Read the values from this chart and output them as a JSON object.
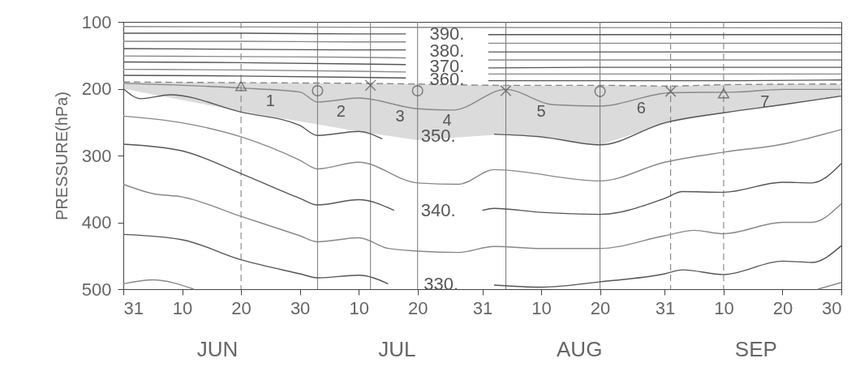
{
  "chart_data": {
    "type": "line",
    "ylabel": "PRESSURE(hPa)",
    "xlim": [
      "--05-31",
      "--09-30"
    ],
    "xticks": [
      {
        "value": "--05-31",
        "label": "31"
      },
      {
        "value": "--06-10",
        "label": "10"
      },
      {
        "value": "--06-20",
        "label": "20"
      },
      {
        "value": "--06-30",
        "label": "30"
      },
      {
        "value": "--07-10",
        "label": "10"
      },
      {
        "value": "--07-20",
        "label": "20"
      },
      {
        "value": "--07-31",
        "label": "31"
      },
      {
        "value": "--08-10",
        "label": "10"
      },
      {
        "value": "--08-20",
        "label": "20"
      },
      {
        "value": "--08-31",
        "label": "31"
      },
      {
        "value": "--09-10",
        "label": "10"
      },
      {
        "value": "--09-20",
        "label": "20"
      },
      {
        "value": "--09-30",
        "label": "30"
      }
    ],
    "ylim": [
      500,
      100
    ],
    "yticks": [
      100,
      200,
      300,
      400,
      500
    ],
    "series": [
      {
        "color": "#888888",
        "x": [
          "--05-31",
          "--07-10",
          "--09-30"
        ],
        "values": [
          107,
          108,
          109
        ]
      },
      {
        "name": "390.",
        "color": "#555555",
        "x": [
          "--05-31",
          "--06-20",
          "--07-10",
          "--07-18",
          "--07-25",
          "--08-01",
          "--08-20",
          "--09-10",
          "--09-30"
        ],
        "values": [
          117,
          117,
          118,
          118,
          null,
          119,
          119,
          119,
          119
        ]
      },
      {
        "color": "#888888",
        "x": [
          "--05-31",
          "--06-20",
          "--07-10",
          "--07-18",
          "--07-25",
          "--08-01",
          "--08-20",
          "--09-10",
          "--09-30"
        ],
        "values": [
          129,
          129,
          130,
          130,
          null,
          132,
          132,
          132,
          132
        ]
      },
      {
        "name": "380.",
        "color": "#555555",
        "x": [
          "--05-31",
          "--06-20",
          "--07-10",
          "--07-18",
          "--07-25",
          "--08-01",
          "--08-20",
          "--09-10",
          "--09-30"
        ],
        "values": [
          140,
          141,
          142,
          142,
          null,
          145,
          145,
          145,
          145
        ]
      },
      {
        "color": "#888888",
        "x": [
          "--05-31",
          "--06-20",
          "--07-10",
          "--07-18",
          "--07-25",
          "--08-01",
          "--08-20",
          "--09-10",
          "--09-30"
        ],
        "values": [
          151,
          152,
          153,
          154,
          null,
          157,
          157,
          157,
          157
        ]
      },
      {
        "name": "370.",
        "color": "#555555",
        "x": [
          "--05-31",
          "--06-20",
          "--07-10",
          "--07-18",
          "--07-25",
          "--08-01",
          "--08-20",
          "--09-10",
          "--09-30"
        ],
        "values": [
          160,
          161,
          163,
          164,
          null,
          169,
          168,
          168,
          168
        ]
      },
      {
        "color": "#888888",
        "x": [
          "--05-31",
          "--06-20",
          "--07-10",
          "--07-18",
          "--07-25",
          "--08-01",
          "--08-20",
          "--09-10",
          "--09-30"
        ],
        "values": [
          171,
          172,
          174,
          175,
          null,
          178,
          178,
          178,
          178
        ]
      },
      {
        "name": "360.",
        "color": "#555555",
        "x": [
          "--05-31",
          "--06-20",
          "--07-10",
          "--07-18",
          "--07-25",
          "--08-01",
          "--08-20",
          "--09-10",
          "--09-30"
        ],
        "values": [
          180,
          181,
          183,
          184,
          null,
          188,
          188,
          188,
          187
        ]
      },
      {
        "color": "#888888",
        "line_style": "dashed",
        "x": [
          "--05-31",
          "--06-20",
          "--07-10",
          "--07-20",
          "--08-04",
          "--08-20",
          "--09-01",
          "--09-10",
          "--09-30"
        ],
        "values": [
          190,
          191,
          192,
          193,
          195,
          195,
          196,
          194,
          193
        ],
        "upper": [
          190,
          191,
          192,
          193,
          195,
          195,
          196,
          194,
          193
        ],
        "lower": [
          200,
          234,
          264,
          277,
          268,
          284,
          250,
          236,
          211
        ]
      },
      {
        "color": "#888888",
        "x": [
          "--05-31",
          "--06-20",
          "--06-30",
          "--07-03",
          "--07-10",
          "--07-20",
          "--07-26",
          "--08-04",
          "--08-12",
          "--08-20",
          "--09-01",
          "--09-12",
          "--09-20",
          "--09-30"
        ],
        "values": [
          192,
          199,
          205,
          220,
          214,
          230,
          232,
          201,
          224,
          226,
          206,
          205,
          201,
          201
        ]
      },
      {
        "name": "350.",
        "color": "#555555",
        "x": [
          "--05-31",
          "--06-03",
          "--06-08",
          "--06-20",
          "--06-30",
          "--07-03",
          "--07-10",
          "--07-14",
          "--07-23",
          "--08-02",
          "--08-10",
          "--08-20",
          "--08-31",
          "--09-10",
          "--09-20",
          "--09-30"
        ],
        "values": [
          200,
          215,
          209,
          235,
          255,
          270,
          264,
          275,
          null,
          268,
          272,
          284,
          251,
          236,
          224,
          211
        ]
      },
      {
        "color": "#888888",
        "x": [
          "--05-31",
          "--06-10",
          "--06-20",
          "--06-30",
          "--07-03",
          "--07-10",
          "--07-20",
          "--07-27",
          "--08-02",
          "--08-20",
          "--08-31",
          "--09-10",
          "--09-20",
          "--09-30"
        ],
        "values": [
          241,
          251,
          272,
          307,
          320,
          310,
          341,
          343,
          321,
          338,
          310,
          295,
          283,
          261
        ]
      },
      {
        "name": "340.",
        "color": "#555555",
        "x": [
          "--05-31",
          "--06-10",
          "--06-20",
          "--06-30",
          "--07-03",
          "--07-10",
          "--07-16",
          "--07-23",
          "--07-31",
          "--08-02",
          "--08-10",
          "--08-20",
          "--08-31",
          "--09-03",
          "--09-10",
          "--09-20",
          "--09-25",
          "--09-30"
        ],
        "values": [
          283,
          293,
          327,
          364,
          374,
          366,
          382,
          null,
          382,
          379,
          385,
          388,
          364,
          354,
          355,
          340,
          341,
          312
        ]
      },
      {
        "color": "#888888",
        "x": [
          "--05-31",
          "--06-05",
          "--06-10",
          "--06-20",
          "--06-30",
          "--07-03",
          "--07-10",
          "--07-15",
          "--07-20",
          "--07-27",
          "--08-02",
          "--08-10",
          "--08-20",
          "--08-31",
          "--09-05",
          "--09-10",
          "--09-20",
          "--09-25",
          "--09-30"
        ],
        "values": [
          343,
          357,
          362,
          391,
          420,
          429,
          423,
          439,
          443,
          445,
          436,
          439,
          439,
          420,
          412,
          417,
          400,
          400,
          372
        ]
      },
      {
        "name": "330.",
        "color": "#555555",
        "x": [
          "--05-31",
          "--06-10",
          "--06-20",
          "--06-30",
          "--07-03",
          "--07-10",
          "--07-15",
          "--07-23",
          "--08-02",
          "--08-10",
          "--08-20",
          "--08-31",
          "--09-03",
          "--09-10",
          "--09-20",
          "--09-25",
          "--09-30"
        ],
        "values": [
          418,
          426,
          456,
          477,
          483,
          479,
          492,
          null,
          494,
          497,
          489,
          477,
          471,
          478,
          458,
          460,
          435
        ]
      },
      {
        "color": "#888888",
        "x": [
          "--05-31",
          "--06-05",
          "--06-12",
          "--07-23",
          "--09-26",
          "--09-30"
        ],
        "values": [
          492,
          486,
          500,
          null,
          500,
          490
        ]
      },
      {
        "type": "scatter",
        "marker": "triangle",
        "color": "#555555",
        "x": [
          "--06-20",
          "--09-10"
        ],
        "values": [
          196,
          207
        ]
      },
      {
        "type": "scatter",
        "marker": "circle",
        "color": "#555555",
        "x": [
          "--07-03",
          "--07-20",
          "--08-20"
        ],
        "values": [
          203,
          203,
          204
        ]
      },
      {
        "type": "scatter",
        "marker": "cross",
        "color": "#555555",
        "x": [
          "--07-12",
          "--08-04",
          "--09-01"
        ],
        "values": [
          195,
          203,
          204
        ]
      }
    ],
    "ref_lines": [
      {
        "axis": "x",
        "value": "--06-20",
        "line_style": "dashed",
        "color": "#777777"
      },
      {
        "axis": "x",
        "value": "--07-03",
        "line_style": "solid",
        "color": "#777777"
      },
      {
        "axis": "x",
        "value": "--07-12",
        "line_style": "solid",
        "color": "#777777"
      },
      {
        "axis": "x",
        "value": "--07-20",
        "line_style": "solid",
        "color": "#777777"
      },
      {
        "axis": "x",
        "value": "--08-04",
        "line_style": "solid",
        "color": "#777777"
      },
      {
        "axis": "x",
        "value": "--08-20",
        "line_style": "solid",
        "color": "#777777"
      },
      {
        "axis": "x",
        "value": "--09-01",
        "line_style": "dashed",
        "color": "#777777"
      },
      {
        "axis": "x",
        "value": "--09-10",
        "line_style": "dashed",
        "color": "#777777"
      }
    ],
    "annotations": [
      {
        "text": "1",
        "x": "--06-25",
        "y": 202
      },
      {
        "text": "2",
        "x": "--07-07",
        "y": 217
      },
      {
        "text": "3",
        "x": "--07-17",
        "y": 225
      },
      {
        "text": "4",
        "x": "--07-25",
        "y": 231
      },
      {
        "text": "5",
        "x": "--08-10",
        "y": 218
      },
      {
        "text": "6",
        "x": "--08-27",
        "y": 213
      },
      {
        "text": "7",
        "x": "--09-17",
        "y": 203
      },
      "JUN",
      "JUL",
      "AUG",
      "SEP"
    ]
  }
}
